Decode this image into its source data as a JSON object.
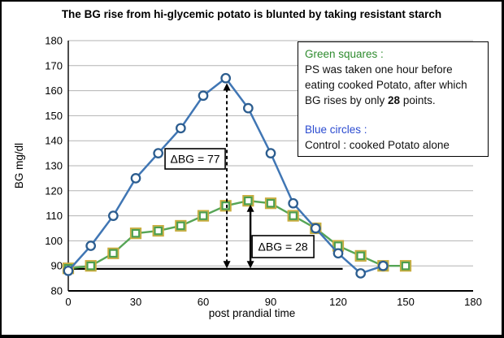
{
  "title": "The BG rise from hi-glycemic potato is blunted by taking resistant starch",
  "legend": {
    "green_header": "Green squares :",
    "green_line1": "PS was taken one hour before",
    "green_line2": "eating cooked Potato, after which",
    "green_line3_prefix": "BG rises by only ",
    "green_line3_bold": "28",
    "green_line3_suffix": " points.",
    "blue_header": "Blue circles :",
    "blue_line1": "Control : cooked Potato alone"
  },
  "colors": {
    "blue_line": "#4076b4",
    "blue_marker_stroke": "#2c5d8f",
    "green_line": "#56a556",
    "green_marker_stroke": "#4c9e4c",
    "green_marker_outline": "#c9ac3c",
    "grid": "#b3b3b3",
    "axis": "#000000",
    "legend_green": "#2e8b2e",
    "legend_blue": "#2b4bd0"
  },
  "chart_data": {
    "type": "line",
    "title": "The BG rise from hi-glycemic potato is blunted by taking resistant starch",
    "xlabel": "post prandial time",
    "ylabel": "BG mg/dl",
    "xlim": [
      0,
      180
    ],
    "ylim": [
      80,
      180
    ],
    "x_ticks": [
      0,
      30,
      60,
      90,
      120,
      150,
      180
    ],
    "y_ticks": [
      80,
      90,
      100,
      110,
      120,
      130,
      140,
      150,
      160,
      170,
      180
    ],
    "grid": "horizontal",
    "legend_position": "top-right box",
    "series": [
      {
        "name": "PS was taken one hour before eating cooked Potato (green squares)",
        "marker": "square",
        "x": [
          0,
          10,
          20,
          30,
          40,
          50,
          60,
          70,
          80,
          90,
          100,
          110,
          120,
          130,
          140,
          150
        ],
        "values": [
          89,
          90,
          95,
          103,
          104,
          106,
          110,
          114,
          116,
          115,
          110,
          105,
          98,
          94,
          90,
          90
        ],
        "peak_rise": 28
      },
      {
        "name": "Control : cooked Potato alone (blue circles)",
        "marker": "circle",
        "x": [
          0,
          10,
          20,
          30,
          40,
          50,
          60,
          70,
          80,
          90,
          100,
          110,
          120,
          130,
          140
        ],
        "values": [
          88,
          98,
          110,
          125,
          135,
          145,
          158,
          165,
          153,
          135,
          115,
          105,
          95,
          87,
          90
        ],
        "peak_rise": 77
      }
    ],
    "annotations": {
      "baseline": {
        "bg": 88.8,
        "x_start": 0,
        "x_end": 122
      },
      "delta_blue": {
        "label": "ΔBG = 77",
        "x": 70.5,
        "from_bg": 89,
        "to_bg": 163,
        "style": "dashed"
      },
      "delta_green": {
        "label": "ΔBG = 28",
        "x": 81,
        "from_bg": 89,
        "to_bg": 114.5,
        "style": "solid"
      }
    }
  }
}
